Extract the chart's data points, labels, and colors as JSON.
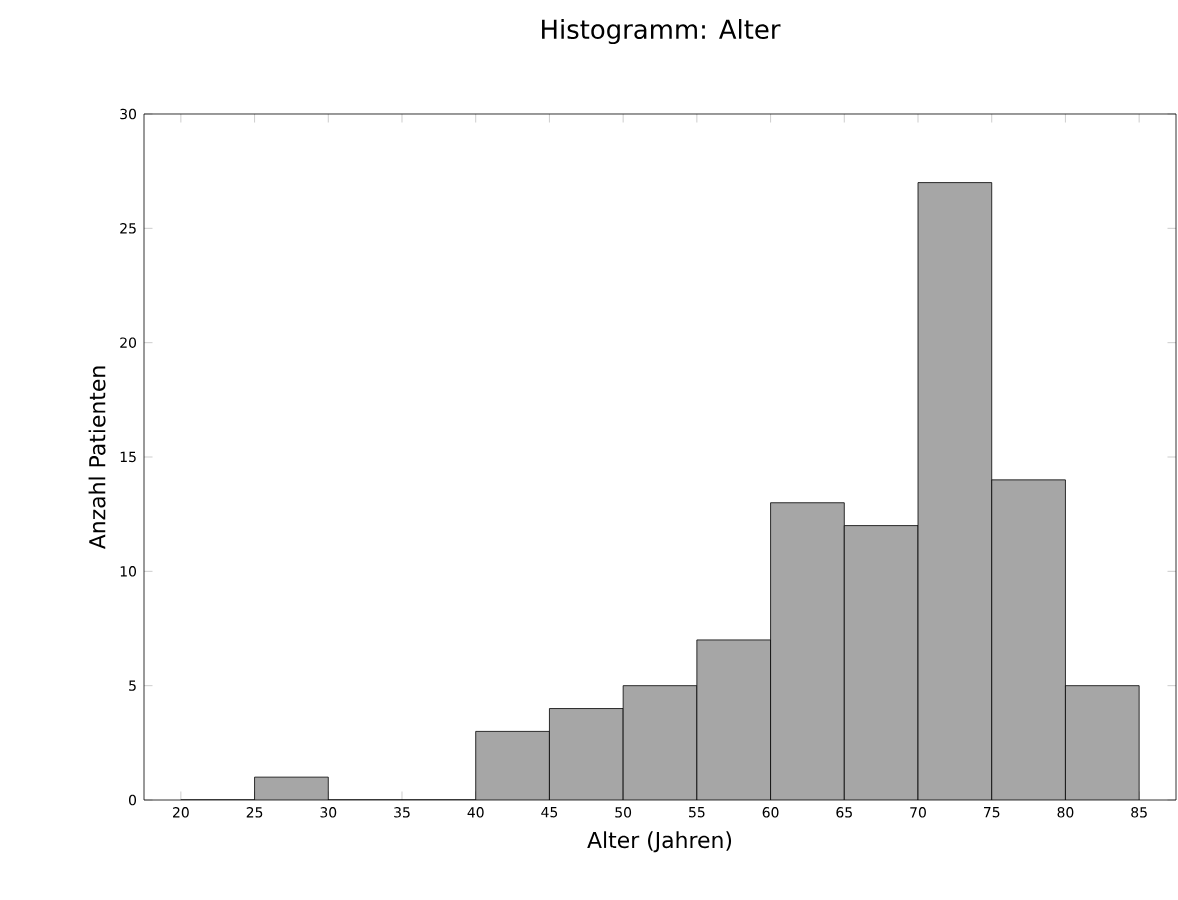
{
  "chart_data": {
    "type": "histogram",
    "title": "Histogramm: Alter",
    "xlabel": "Alter (Jahren)",
    "ylabel": "Anzahl Patienten",
    "bins": [
      20,
      25,
      30,
      35,
      40,
      45,
      50,
      55,
      60,
      65,
      70,
      75,
      80,
      85
    ],
    "values": [
      0,
      1,
      0,
      0,
      3,
      4,
      5,
      7,
      13,
      12,
      27,
      14,
      5
    ],
    "color": "#a6a6a6",
    "xlim": [
      17.5,
      87.5
    ],
    "xticks": [
      20,
      25,
      30,
      35,
      40,
      45,
      50,
      55,
      60,
      65,
      70,
      75,
      80,
      85
    ],
    "ylim": [
      0,
      30
    ],
    "yticks": [
      0,
      5,
      10,
      15,
      20,
      25,
      30
    ],
    "grid": false
  }
}
